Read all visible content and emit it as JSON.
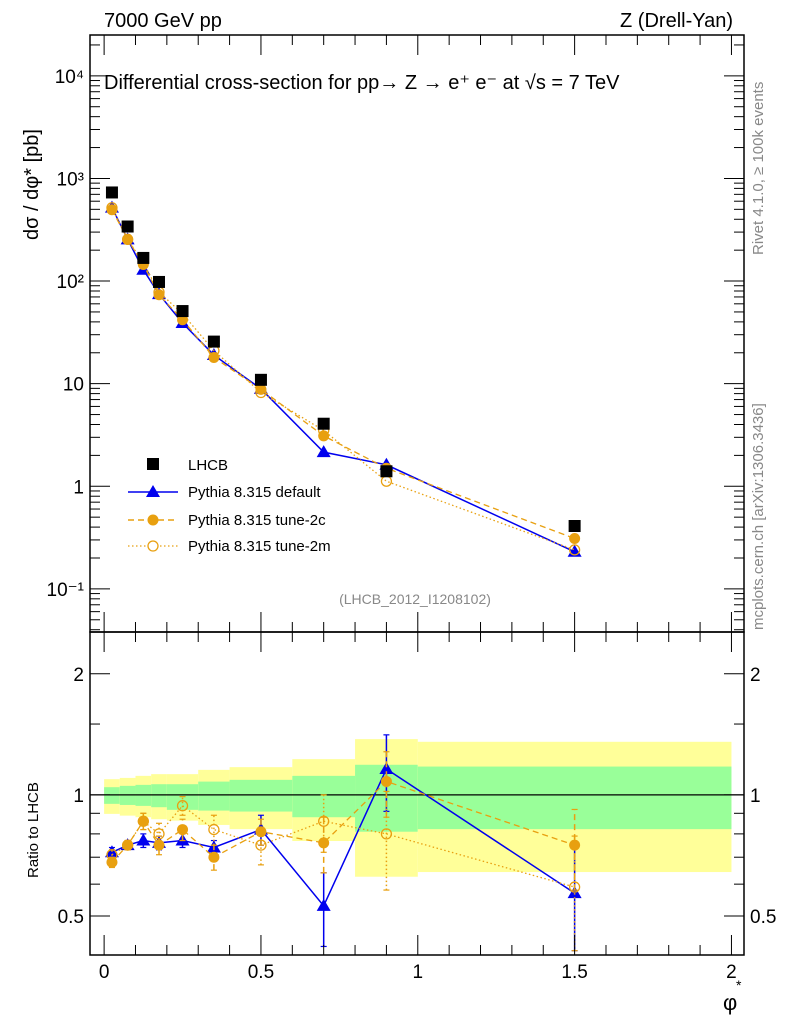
{
  "header": {
    "left": "7000 GeV pp",
    "right": "Z (Drell-Yan)"
  },
  "side_labels": {
    "rivet": "Rivet 4.1.0, ≥ 100k events",
    "mcplots": "mcplots.cern.ch [arXiv:1306.3436]"
  },
  "colors": {
    "data": "#000000",
    "default": "#0000ee",
    "tune2c": "#e8a010",
    "tune2m": "#e8a010",
    "band_total": "#ffff99",
    "band_stat": "#99ff99"
  },
  "chart_data": [
    {
      "type": "line",
      "title": "Differential cross-section for pp→  Z →  e⁺ e⁻ at √s = 7 TeV",
      "ylabel": "dσ / dφ* [pb]",
      "xlabel": "",
      "yscale": "log",
      "ylim": [
        0.038,
        25000
      ],
      "xlim": [
        -0.045,
        2.04
      ],
      "analysis_label": "(LHCB_2012_I1208102)",
      "y_tick_labels": [
        "10⁻¹",
        "1",
        "10",
        "10²",
        "10³",
        "10⁴"
      ],
      "y_tick_values": [
        0.1,
        1,
        10,
        100,
        1000,
        10000
      ],
      "legend_position": "bottom-left",
      "x": [
        0.025,
        0.075,
        0.125,
        0.175,
        0.25,
        0.35,
        0.5,
        0.7,
        0.9,
        1.5
      ],
      "series": [
        {
          "name": "LHCB",
          "style": "data",
          "values": [
            730,
            340,
            168,
            98,
            51,
            25.7,
            10.9,
            4.07,
            1.4,
            0.41
          ]
        },
        {
          "name": "Pythia 8.315 default",
          "style": "default",
          "values": [
            520,
            255,
            129,
            74.5,
            39,
            19,
            8.9,
            2.15,
            1.62,
            0.23
          ]
        },
        {
          "name": "Pythia 8.315 tune-2c",
          "style": "tune2c",
          "values": [
            496,
            255,
            145,
            73.5,
            42,
            18,
            8.8,
            3.1,
            1.5,
            0.31
          ]
        },
        {
          "name": "Pythia 8.315 tune-2m",
          "style": "tune2m",
          "values": [
            518,
            255,
            150,
            78,
            48,
            21,
            8.2,
            3.5,
            1.12,
            0.24
          ]
        }
      ]
    },
    {
      "type": "line",
      "ylabel": "Ratio to LHCB",
      "xlabel": "φ",
      "xlabel_sup": "*",
      "yscale": "log",
      "ylim": [
        0.4,
        2.54
      ],
      "xlim": [
        -0.045,
        2.04
      ],
      "y_tick_labels": [
        "0.5",
        "1",
        "2"
      ],
      "y_tick_values": [
        0.5,
        1,
        2
      ],
      "x_tick_labels": [
        "0",
        "0.5",
        "1",
        "1.5",
        "2"
      ],
      "x_tick_values": [
        0,
        0.5,
        1,
        1.5,
        2
      ],
      "bin_edges": [
        0,
        0.05,
        0.1,
        0.15,
        0.2,
        0.3,
        0.4,
        0.6,
        0.8,
        1.0,
        2.0
      ],
      "band_total": {
        "upper": [
          1.094,
          1.102,
          1.115,
          1.126,
          1.126,
          1.154,
          1.172,
          1.227,
          1.376,
          1.355
        ],
        "lower": [
          0.897,
          0.888,
          0.88,
          0.87,
          0.863,
          0.842,
          0.822,
          0.768,
          0.626,
          0.643
        ]
      },
      "band_stat": {
        "upper": [
          1.045,
          1.053,
          1.059,
          1.063,
          1.063,
          1.079,
          1.09,
          1.115,
          1.188,
          1.176
        ],
        "lower": [
          0.95,
          0.944,
          0.939,
          0.932,
          0.918,
          0.914,
          0.909,
          0.88,
          0.81,
          0.822
        ]
      },
      "x": [
        0.025,
        0.075,
        0.125,
        0.175,
        0.25,
        0.35,
        0.5,
        0.7,
        0.9,
        1.5
      ],
      "series": [
        {
          "name": "Pythia 8.315 default",
          "style": "default",
          "values": [
            0.72,
            0.75,
            0.77,
            0.76,
            0.77,
            0.74,
            0.82,
            0.53,
            1.16,
            0.57
          ],
          "errors": [
            0.02,
            0.02,
            0.03,
            0.03,
            0.03,
            0.03,
            0.07,
            0.11,
            0.25,
            0.17
          ]
        },
        {
          "name": "Pythia 8.315 tune-2c",
          "style": "tune2c",
          "values": [
            0.68,
            0.75,
            0.86,
            0.75,
            0.82,
            0.7,
            0.81,
            0.76,
            1.08,
            0.75
          ],
          "errors": [
            0.02,
            0.02,
            0.04,
            0.04,
            0.05,
            0.05,
            0.06,
            0.12,
            0.2,
            0.17
          ]
        },
        {
          "name": "Pythia 8.315 tune-2m",
          "style": "tune2m",
          "values": [
            0.71,
            0.75,
            0.86,
            0.8,
            0.94,
            0.82,
            0.75,
            0.86,
            0.8,
            0.59
          ],
          "errors": [
            0.02,
            0.02,
            0.04,
            0.05,
            0.05,
            0.07,
            0.08,
            0.14,
            0.22,
            0.2
          ]
        }
      ]
    }
  ]
}
